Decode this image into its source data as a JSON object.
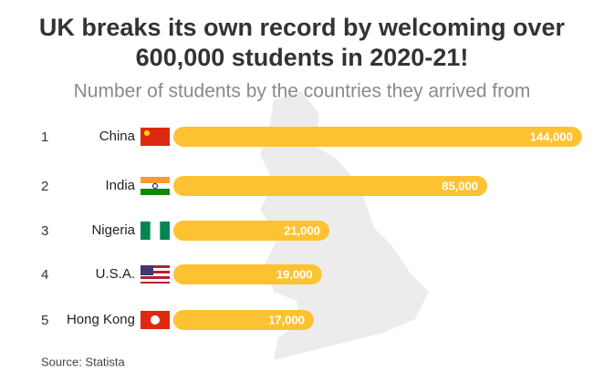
{
  "chart_data": {
    "type": "bar",
    "title": "UK breaks its own record by welcoming over 600,000 students in 2020-21!",
    "subtitle": "Number of students by the countries they arrived from",
    "ranks": [
      1,
      2,
      3,
      4,
      5
    ],
    "categories": [
      "China",
      "India",
      "Nigeria",
      "U.S.A.",
      "Hong Kong"
    ],
    "values": [
      144000,
      85000,
      21000,
      19000,
      17000
    ],
    "value_labels": [
      "144,000",
      "85,000",
      "21,000",
      "19,000",
      "17,000"
    ],
    "color": "#fdc232",
    "source": "Source: Statista"
  }
}
